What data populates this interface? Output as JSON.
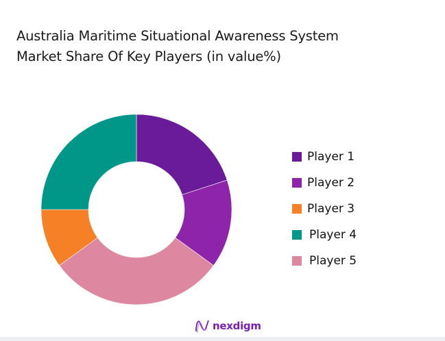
{
  "title_lines": [
    "Australia Maritime Situational Awareness System",
    "Market Share Of Key Players (in value%)"
  ],
  "chart_data": {
    "type": "pie",
    "variant": "donut",
    "title": "Australia Maritime Situational Awareness System Market Share Of Key Players (in value%)",
    "categories": [
      "Player 1",
      "Player 2",
      "Player 3",
      "Player 4",
      "Player 5"
    ],
    "values": [
      20,
      15,
      10,
      25,
      30
    ],
    "draw_order": [
      "Player 1",
      "Player 2",
      "Player 5",
      "Player 3",
      "Player 4"
    ],
    "colors": {
      "Player 1": "#6a1b9a",
      "Player 2": "#8e24aa",
      "Player 3": "#f58025",
      "Player 4": "#009688",
      "Player 5": "#de87a0"
    },
    "start_angle_deg": 0,
    "direction": "clockwise",
    "legend_position": "right",
    "data_labels": false
  },
  "legend": [
    {
      "label": "Player 1",
      "color": "#6a1b9a"
    },
    {
      "label": "Player 2",
      "color": "#8e24aa"
    },
    {
      "label": "Player 3",
      "color": "#f58025"
    },
    {
      "label": "Player 4",
      "color": "#009688"
    },
    {
      "label": "Player 5",
      "color": "#de87a0"
    }
  ],
  "logo": {
    "text": "nexdigm",
    "icon": "nexdigm-wave-icon"
  }
}
